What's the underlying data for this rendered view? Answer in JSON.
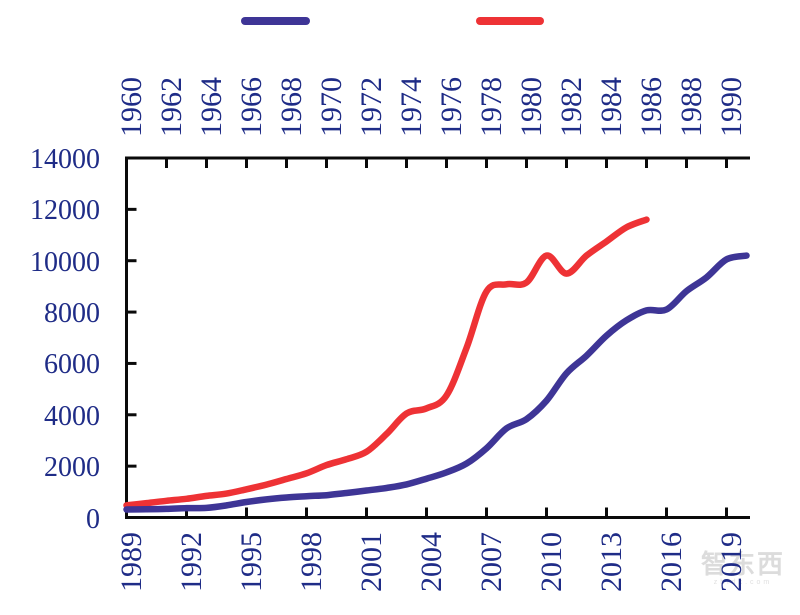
{
  "colors": {
    "background": "#ffffff",
    "axis": "#0a0a0a",
    "tick_label": "#1f2c87",
    "blue_line": "#3e3596",
    "red_line": "#ee3235",
    "watermark": "#dcdcdc"
  },
  "legend": {
    "position": "top",
    "labels_visible": false,
    "items": [
      {
        "name": "series_blue",
        "label": "",
        "color": "#3e3596"
      },
      {
        "name": "series_red",
        "label": "",
        "color": "#ee3235"
      }
    ]
  },
  "watermark": {
    "text": "智东西",
    "subtext": "zhidx.com"
  },
  "chart_data": {
    "type": "line",
    "title": "",
    "grid": false,
    "legend_position": "top",
    "axes": {
      "left_y": {
        "label": "",
        "range": [
          0,
          14000
        ],
        "tick_step": 2000,
        "ticks": [
          "0",
          "2000",
          "4000",
          "6000",
          "8000",
          "10000",
          "12000",
          "14000"
        ]
      },
      "top_x": {
        "label": "",
        "range": [
          1960,
          1990
        ],
        "tick_step": 2,
        "ticks": [
          "1960",
          "1962",
          "1964",
          "1966",
          "1968",
          "1970",
          "1972",
          "1974",
          "1976",
          "1978",
          "1980",
          "1982",
          "1984",
          "1986",
          "1988",
          "1990"
        ]
      },
      "bottom_x": {
        "label": "",
        "range": [
          1989,
          2019
        ],
        "tick_step": 3,
        "ticks": [
          "1989",
          "1992",
          "1995",
          "1998",
          "2001",
          "2004",
          "2007",
          "2010",
          "2013",
          "2016",
          "2019"
        ]
      }
    },
    "series": [
      {
        "name": "series_red",
        "axis": "top_x",
        "color": "#ee3235",
        "x": [
          1960,
          1961,
          1962,
          1963,
          1964,
          1965,
          1966,
          1967,
          1968,
          1969,
          1970,
          1971,
          1972,
          1973,
          1974,
          1975,
          1976,
          1977,
          1978,
          1979,
          1980,
          1981,
          1982,
          1983,
          1984,
          1985,
          1986
        ],
        "values": [
          475,
          560,
          650,
          730,
          840,
          930,
          1100,
          1280,
          1500,
          1720,
          2040,
          2270,
          2560,
          3250,
          4050,
          4250,
          4750,
          6600,
          8800,
          9080,
          9150,
          10200,
          9500,
          10200,
          10750,
          11300,
          11600
        ]
      },
      {
        "name": "series_blue",
        "axis": "bottom_x",
        "color": "#3e3596",
        "x": [
          1989,
          1990,
          1991,
          1992,
          1993,
          1994,
          1995,
          1996,
          1997,
          1998,
          1999,
          2000,
          2001,
          2002,
          2003,
          2004,
          2005,
          2006,
          2007,
          2008,
          2009,
          2010,
          2011,
          2012,
          2013,
          2014,
          2015,
          2016,
          2017,
          2018,
          2019,
          2020
        ],
        "values": [
          310,
          320,
          335,
          365,
          375,
          470,
          605,
          705,
          780,
          830,
          870,
          955,
          1050,
          1150,
          1290,
          1510,
          1755,
          2100,
          2695,
          3470,
          3830,
          4550,
          5615,
          6300,
          7080,
          7680,
          8065,
          8100,
          8815,
          9350,
          10050,
          10200
        ]
      }
    ]
  }
}
